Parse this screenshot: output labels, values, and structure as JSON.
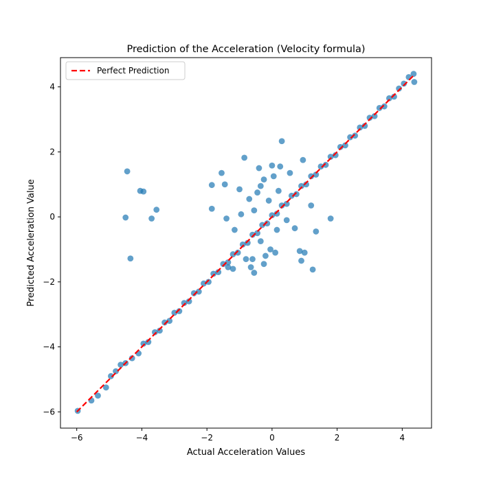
{
  "chart_data": {
    "type": "scatter",
    "title": "Prediction of the Acceleration (Velocity formula)",
    "xlabel": "Actual Acceleration Values",
    "ylabel": "Predicted Acceleration Value",
    "xlim": [
      -6.5,
      4.9
    ],
    "ylim": [
      -6.5,
      4.9
    ],
    "xticks": [
      -6,
      -4,
      -2,
      0,
      2,
      4
    ],
    "yticks": [
      -6,
      -4,
      -2,
      0,
      2,
      4
    ],
    "xtick_labels": [
      "−6",
      "−4",
      "−2",
      "0",
      "2",
      "4"
    ],
    "ytick_labels": [
      "−6",
      "−4",
      "−2",
      "0",
      "2",
      "4"
    ],
    "grid": false,
    "legend_position": "top-left",
    "marker_color": "#1f77b4",
    "marker_opacity": 0.7,
    "line_color": "#ff0000",
    "series": [
      {
        "name": "Perfect Prediction",
        "kind": "line",
        "style": "dashed",
        "x": [
          -6,
          4.35
        ],
        "y": [
          -6,
          4.35
        ]
      },
      {
        "kind": "scatter",
        "points": [
          [
            -5.97,
            -5.97
          ],
          [
            -5.55,
            -5.65
          ],
          [
            -5.35,
            -5.5
          ],
          [
            -5.1,
            -5.25
          ],
          [
            -4.95,
            -4.9
          ],
          [
            -4.8,
            -4.75
          ],
          [
            -4.65,
            -4.55
          ],
          [
            -4.5,
            -4.5
          ],
          [
            -4.3,
            -4.35
          ],
          [
            -4.1,
            -4.2
          ],
          [
            -3.95,
            -3.9
          ],
          [
            -3.8,
            -3.85
          ],
          [
            -3.6,
            -3.55
          ],
          [
            -3.45,
            -3.5
          ],
          [
            -3.3,
            -3.25
          ],
          [
            -3.15,
            -3.2
          ],
          [
            -3.0,
            -2.95
          ],
          [
            -2.85,
            -2.9
          ],
          [
            -2.7,
            -2.65
          ],
          [
            -2.55,
            -2.6
          ],
          [
            -2.4,
            -2.35
          ],
          [
            -2.25,
            -2.3
          ],
          [
            -2.1,
            -2.05
          ],
          [
            -1.95,
            -2.0
          ],
          [
            -1.8,
            -1.75
          ],
          [
            -1.65,
            -1.7
          ],
          [
            -1.5,
            -1.45
          ],
          [
            -1.35,
            -1.4
          ],
          [
            -1.2,
            -1.15
          ],
          [
            -1.05,
            -1.1
          ],
          [
            -0.9,
            -0.85
          ],
          [
            -0.75,
            -0.8
          ],
          [
            -0.6,
            -0.55
          ],
          [
            -0.45,
            -0.5
          ],
          [
            -0.3,
            -0.25
          ],
          [
            -0.15,
            -0.2
          ],
          [
            0.0,
            0.05
          ],
          [
            0.15,
            0.1
          ],
          [
            0.3,
            0.35
          ],
          [
            0.45,
            0.4
          ],
          [
            0.6,
            0.65
          ],
          [
            0.75,
            0.7
          ],
          [
            0.9,
            0.95
          ],
          [
            1.05,
            1.0
          ],
          [
            1.2,
            1.25
          ],
          [
            1.35,
            1.3
          ],
          [
            1.5,
            1.55
          ],
          [
            1.65,
            1.6
          ],
          [
            1.8,
            1.85
          ],
          [
            1.95,
            1.9
          ],
          [
            2.1,
            2.15
          ],
          [
            2.25,
            2.2
          ],
          [
            2.4,
            2.45
          ],
          [
            2.55,
            2.5
          ],
          [
            2.7,
            2.75
          ],
          [
            2.85,
            2.8
          ],
          [
            3.0,
            3.05
          ],
          [
            3.15,
            3.1
          ],
          [
            3.3,
            3.35
          ],
          [
            3.45,
            3.4
          ],
          [
            3.6,
            3.65
          ],
          [
            3.75,
            3.7
          ],
          [
            3.9,
            3.95
          ],
          [
            4.05,
            4.1
          ],
          [
            4.2,
            4.3
          ],
          [
            4.35,
            4.4
          ],
          [
            4.37,
            4.15
          ],
          [
            -4.45,
            1.4
          ],
          [
            -4.05,
            0.8
          ],
          [
            -3.95,
            0.78
          ],
          [
            -3.55,
            0.22
          ],
          [
            -4.5,
            -0.02
          ],
          [
            -3.7,
            -0.05
          ],
          [
            -4.35,
            -1.28
          ],
          [
            -1.85,
            0.25
          ],
          [
            -1.85,
            0.98
          ],
          [
            -1.55,
            1.35
          ],
          [
            -0.85,
            1.82
          ],
          [
            0.3,
            2.33
          ],
          [
            0.55,
            1.35
          ],
          [
            0.95,
            1.75
          ],
          [
            1.2,
            0.35
          ],
          [
            1.8,
            -0.05
          ],
          [
            1.35,
            -0.45
          ],
          [
            0.85,
            -1.05
          ],
          [
            1.0,
            -1.1
          ],
          [
            1.25,
            -1.62
          ],
          [
            0.9,
            -1.35
          ],
          [
            -0.65,
            -1.55
          ],
          [
            -0.55,
            -1.72
          ],
          [
            -1.35,
            -1.55
          ],
          [
            -1.2,
            -1.6
          ],
          [
            -0.8,
            -1.3
          ],
          [
            -0.45,
            0.75
          ],
          [
            -0.35,
            0.95
          ],
          [
            -0.25,
            1.15
          ],
          [
            -0.1,
            0.5
          ],
          [
            0.05,
            1.25
          ],
          [
            0.2,
            0.8
          ],
          [
            -0.55,
            0.2
          ],
          [
            -0.7,
            0.55
          ],
          [
            -0.95,
            0.08
          ],
          [
            -0.35,
            -0.75
          ],
          [
            -0.05,
            -1.0
          ],
          [
            0.15,
            -0.4
          ],
          [
            0.45,
            -0.1
          ],
          [
            0.7,
            -0.35
          ],
          [
            -0.6,
            -1.3
          ],
          [
            -0.2,
            -1.2
          ],
          [
            0.1,
            -1.1
          ],
          [
            -1.4,
            -0.05
          ],
          [
            -1.15,
            -0.4
          ],
          [
            -1.0,
            0.85
          ],
          [
            -0.4,
            1.5
          ],
          [
            0.0,
            1.58
          ],
          [
            0.25,
            1.55
          ],
          [
            -1.45,
            1.0
          ],
          [
            -0.25,
            -1.45
          ]
        ]
      }
    ]
  }
}
